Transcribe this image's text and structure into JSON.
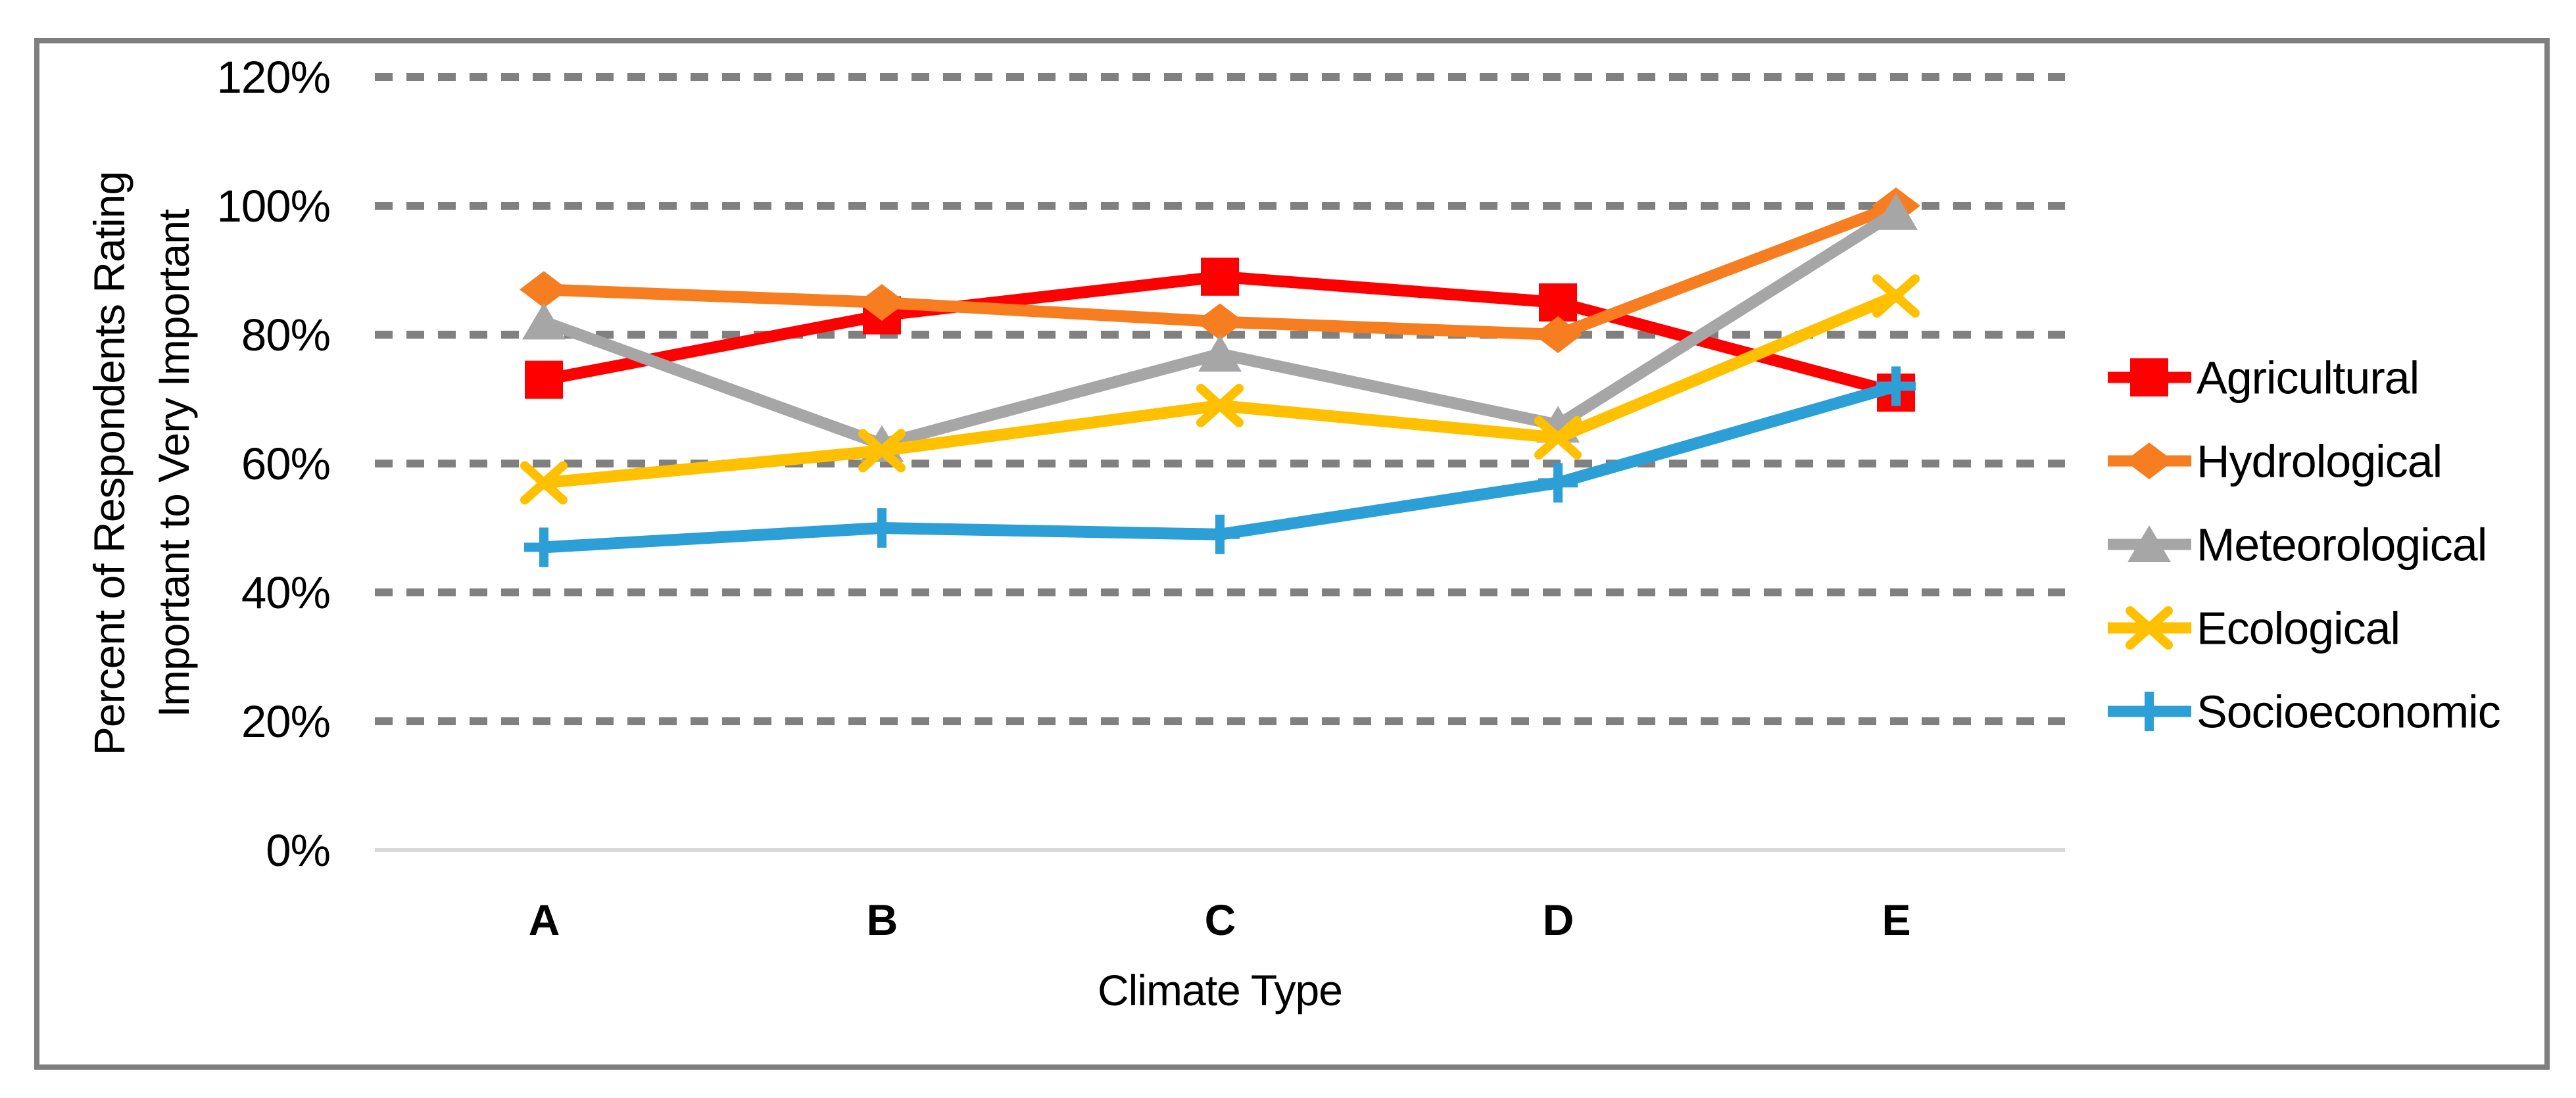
{
  "frame": {
    "border_color": "#7F7F7F",
    "background": "#FFFFFF"
  },
  "chart_data": {
    "type": "line",
    "title": "",
    "xlabel": "Climate Type",
    "ylabel_lines": [
      "Percent of Respondents Rating",
      "Important to Very Important"
    ],
    "categories": [
      "A",
      "B",
      "C",
      "D",
      "E"
    ],
    "y_axis": {
      "min": 0,
      "max": 120,
      "step": 20,
      "tick_values": [
        0,
        20,
        40,
        60,
        80,
        100,
        120
      ],
      "tick_labels": [
        "0%",
        "20%",
        "40%",
        "60%",
        "80%",
        "100%",
        "120%"
      ]
    },
    "grid": {
      "horizontal": true,
      "style": "dashed",
      "color": "#808080",
      "zero_line_color": "#D9D9D9"
    },
    "legend_position": "right",
    "series": [
      {
        "name": "Agricultural",
        "color": "#FF0000",
        "marker": "square",
        "values": [
          73,
          83,
          89,
          85,
          71
        ]
      },
      {
        "name": "Hydrological",
        "color": "#F67E21",
        "marker": "diamond",
        "values": [
          87,
          85,
          82,
          80,
          100
        ]
      },
      {
        "name": "Meteorological",
        "color": "#A6A6A6",
        "marker": "triangle",
        "values": [
          82,
          63,
          77,
          66,
          99
        ]
      },
      {
        "name": "Ecological",
        "color": "#FFC000",
        "marker": "x",
        "values": [
          57,
          62,
          69,
          64,
          86
        ]
      },
      {
        "name": "Socioeconomic",
        "color": "#2B9FD6",
        "marker": "plus",
        "values": [
          47,
          50,
          49,
          57,
          72
        ]
      }
    ]
  }
}
